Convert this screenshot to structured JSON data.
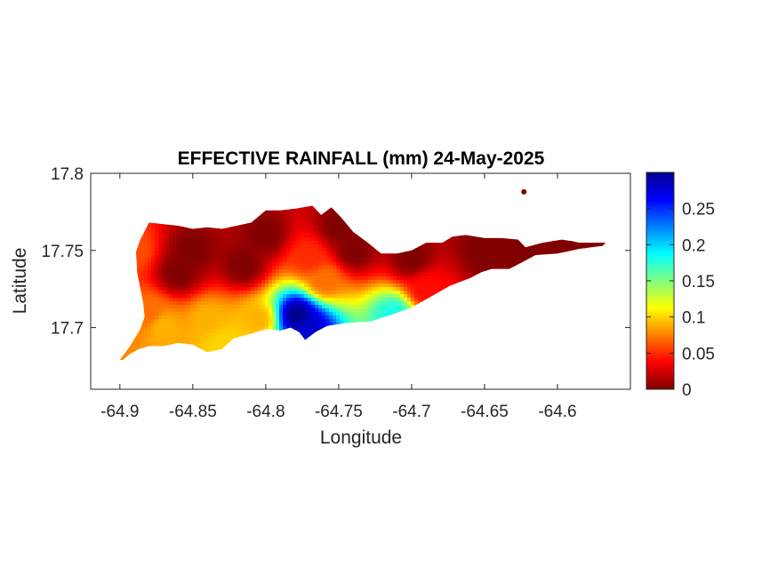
{
  "chart_data": {
    "type": "heatmap",
    "title": "EFFECTIVE RAINFALL (mm) 24-May-2025",
    "xlabel": "Longitude",
    "ylabel": "Latitude",
    "xlim": [
      -64.92,
      -64.55
    ],
    "ylim": [
      17.66,
      17.8
    ],
    "x_ticks": [
      -64.9,
      -64.85,
      -64.8,
      -64.75,
      -64.7,
      -64.65,
      -64.6
    ],
    "x_tick_labels": [
      "-64.9",
      "-64.85",
      "-64.8",
      "-64.75",
      "-64.7",
      "-64.65",
      "-64.6"
    ],
    "y_ticks": [
      17.7,
      17.75,
      17.8
    ],
    "y_tick_labels": [
      "17.7",
      "17.75",
      "17.8"
    ],
    "colormap": "jet",
    "colorbar": {
      "min": 0,
      "max": 0.3,
      "ticks": [
        0,
        0.05,
        0.1,
        0.15,
        0.2,
        0.25
      ],
      "tick_labels": [
        "0",
        "0.05",
        "0.1",
        "0.15",
        "0.2",
        "0.25"
      ]
    },
    "island_outline": [
      [
        -64.9,
        17.679
      ],
      [
        -64.893,
        17.688
      ],
      [
        -64.886,
        17.699
      ],
      [
        -64.883,
        17.707
      ],
      [
        -64.884,
        17.716
      ],
      [
        -64.888,
        17.735
      ],
      [
        -64.889,
        17.749
      ],
      [
        -64.886,
        17.757
      ],
      [
        -64.88,
        17.768
      ],
      [
        -64.87,
        17.767
      ],
      [
        -64.86,
        17.766
      ],
      [
        -64.85,
        17.764
      ],
      [
        -64.84,
        17.765
      ],
      [
        -64.83,
        17.764
      ],
      [
        -64.82,
        17.766
      ],
      [
        -64.81,
        17.768
      ],
      [
        -64.8,
        17.776
      ],
      [
        -64.79,
        17.776
      ],
      [
        -64.78,
        17.777
      ],
      [
        -64.768,
        17.779
      ],
      [
        -64.762,
        17.773
      ],
      [
        -64.755,
        17.778
      ],
      [
        -64.748,
        17.771
      ],
      [
        -64.74,
        17.762
      ],
      [
        -64.73,
        17.755
      ],
      [
        -64.721,
        17.748
      ],
      [
        -64.71,
        17.748
      ],
      [
        -64.7,
        17.75
      ],
      [
        -64.69,
        17.755
      ],
      [
        -64.679,
        17.755
      ],
      [
        -64.672,
        17.759
      ],
      [
        -64.663,
        17.76
      ],
      [
        -64.65,
        17.758
      ],
      [
        -64.638,
        17.758
      ],
      [
        -64.627,
        17.757
      ],
      [
        -64.622,
        17.752
      ],
      [
        -64.61,
        17.755
      ],
      [
        -64.597,
        17.757
      ],
      [
        -64.59,
        17.756
      ],
      [
        -64.585,
        17.755
      ],
      [
        -64.574,
        17.755
      ],
      [
        -64.567,
        17.755
      ],
      [
        -64.569,
        17.753
      ],
      [
        -64.585,
        17.751
      ],
      [
        -64.6,
        17.748
      ],
      [
        -64.615,
        17.747
      ],
      [
        -64.625,
        17.742
      ],
      [
        -64.633,
        17.738
      ],
      [
        -64.645,
        17.738
      ],
      [
        -64.652,
        17.736
      ],
      [
        -64.66,
        17.732
      ],
      [
        -64.674,
        17.727
      ],
      [
        -64.685,
        17.721
      ],
      [
        -64.7,
        17.713
      ],
      [
        -64.715,
        17.708
      ],
      [
        -64.728,
        17.704
      ],
      [
        -64.745,
        17.703
      ],
      [
        -64.758,
        17.701
      ],
      [
        -64.766,
        17.697
      ],
      [
        -64.773,
        17.692
      ],
      [
        -64.777,
        17.697
      ],
      [
        -64.783,
        17.7
      ],
      [
        -64.79,
        17.698
      ],
      [
        -64.8,
        17.699
      ],
      [
        -64.81,
        17.696
      ],
      [
        -64.822,
        17.693
      ],
      [
        -64.83,
        17.686
      ],
      [
        -64.84,
        17.684
      ],
      [
        -64.85,
        17.689
      ],
      [
        -64.86,
        17.69
      ],
      [
        -64.87,
        17.688
      ],
      [
        -64.88,
        17.688
      ],
      [
        -64.887,
        17.686
      ],
      [
        -64.893,
        17.683
      ],
      [
        -64.898,
        17.679
      ]
    ],
    "interpolation_points": [
      {
        "lon": -64.89,
        "lat": 17.75,
        "value": 0.06
      },
      {
        "lon": -64.88,
        "lat": 17.71,
        "value": 0.07
      },
      {
        "lon": -64.87,
        "lat": 17.7,
        "value": 0.09
      },
      {
        "lon": -64.84,
        "lat": 17.705,
        "value": 0.09
      },
      {
        "lon": -64.83,
        "lat": 17.69,
        "value": 0.1
      },
      {
        "lon": -64.805,
        "lat": 17.705,
        "value": 0.09
      },
      {
        "lon": -64.778,
        "lat": 17.708,
        "value": 0.3
      },
      {
        "lon": -64.77,
        "lat": 17.7,
        "value": 0.28
      },
      {
        "lon": -64.77,
        "lat": 17.745,
        "value": 0.05
      },
      {
        "lon": -64.76,
        "lat": 17.73,
        "value": 0.07
      },
      {
        "lon": -64.712,
        "lat": 17.708,
        "value": 0.18
      },
      {
        "lon": -64.69,
        "lat": 17.725,
        "value": 0.04
      },
      {
        "lon": -64.85,
        "lat": 17.75,
        "value": 0.0
      },
      {
        "lon": -64.8,
        "lat": 17.76,
        "value": 0.0
      },
      {
        "lon": -64.75,
        "lat": 17.765,
        "value": 0.0
      },
      {
        "lon": -64.7,
        "lat": 17.745,
        "value": 0.0
      },
      {
        "lon": -64.65,
        "lat": 17.75,
        "value": 0.0
      },
      {
        "lon": -64.62,
        "lat": 17.745,
        "value": 0.0
      },
      {
        "lon": -64.59,
        "lat": 17.752,
        "value": 0.0
      },
      {
        "lon": -64.86,
        "lat": 17.735,
        "value": 0.0
      },
      {
        "lon": -64.815,
        "lat": 17.74,
        "value": 0.0
      },
      {
        "lon": -64.74,
        "lat": 17.75,
        "value": 0.0
      }
    ],
    "islet": {
      "lon": -64.623,
      "lat": 17.788,
      "value": 0.0
    }
  }
}
